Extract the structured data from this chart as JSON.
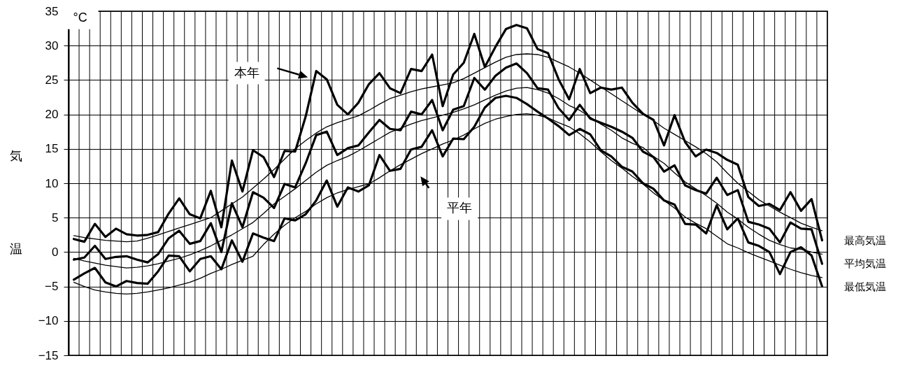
{
  "chart_data": {
    "type": "line",
    "ylabel": "気温",
    "categories": [
      null,
      null,
      null,
      null,
      null,
      null,
      null,
      null,
      null,
      null,
      null,
      null,
      null,
      null,
      null,
      null,
      null,
      null,
      null,
      null,
      null,
      null,
      null,
      null,
      null,
      null,
      null,
      null,
      null,
      null,
      null,
      null,
      null,
      null,
      null,
      null,
      null,
      null,
      null,
      null,
      null,
      null,
      null,
      null,
      null,
      null,
      null,
      null,
      null,
      null,
      null,
      null,
      null,
      null,
      null,
      null,
      null,
      null,
      null,
      null,
      null,
      null,
      null,
      null,
      null,
      null,
      null,
      null,
      null,
      null,
      null,
      null
    ],
    "ylim": [
      -15,
      35
    ],
    "yticks": [
      -15,
      -10,
      -5,
      0,
      5,
      10,
      15,
      20,
      25,
      30,
      35
    ],
    "grid": true,
    "annotations": [
      "°C",
      "本年",
      "平年"
    ],
    "series": [
      {
        "name": "最高気温",
        "color": "#000000",
        "values": [
          1.9,
          1.5,
          4.1,
          2.2,
          3.4,
          2.6,
          2.4,
          2.5,
          2.9,
          5.6,
          7.8,
          5.5,
          4.9,
          8.9,
          3.6,
          13.3,
          8.8,
          14.8,
          13.8,
          10.9,
          14.7,
          14.6,
          19.7,
          26.3,
          25.1,
          21.4,
          20.0,
          21.7,
          24.4,
          26.0,
          23.8,
          23.1,
          26.6,
          26.3,
          28.7,
          21.2,
          25.8,
          27.5,
          31.7,
          26.9,
          29.8,
          32.4,
          33.0,
          32.5,
          29.5,
          28.9,
          25.1,
          22.2,
          26.6,
          23.1,
          23.9,
          23.6,
          23.9,
          21.7,
          20.1,
          19.2,
          15.5,
          19.9,
          16.0,
          13.9,
          14.9,
          14.4,
          13.4,
          12.7,
          8.0,
          6.7,
          7.0,
          6.1,
          8.7,
          6.0,
          7.7,
          1.7
        ]
      },
      {
        "name": "平均気温",
        "color": "#000000",
        "values": [
          -1.1,
          -0.8,
          0.9,
          -1.0,
          -0.7,
          -0.6,
          -1.1,
          -1.5,
          -0.3,
          2.0,
          3.1,
          1.2,
          1.6,
          4.2,
          0.0,
          7.1,
          3.6,
          8.7,
          7.9,
          6.4,
          9.9,
          9.4,
          12.9,
          17.0,
          17.5,
          14.1,
          15.1,
          15.5,
          17.4,
          19.2,
          17.9,
          17.7,
          20.4,
          20.0,
          22.1,
          17.7,
          20.7,
          21.2,
          25.3,
          23.6,
          25.6,
          26.8,
          27.4,
          26.0,
          23.8,
          23.6,
          20.9,
          19.2,
          21.4,
          19.4,
          18.8,
          18.2,
          17.5,
          16.6,
          14.6,
          13.8,
          11.7,
          12.6,
          9.7,
          9.0,
          8.5,
          10.8,
          8.3,
          9.0,
          4.4,
          4.0,
          3.4,
          1.4,
          4.3,
          3.4,
          3.3,
          -1.7
        ]
      },
      {
        "name": "最低気温",
        "color": "#000000",
        "values": [
          -4.0,
          -3.1,
          -2.3,
          -4.4,
          -5.0,
          -4.2,
          -4.5,
          -4.6,
          -2.8,
          -0.5,
          -0.6,
          -2.8,
          -1.0,
          -0.6,
          -2.5,
          1.7,
          -1.4,
          2.7,
          2.1,
          1.6,
          4.9,
          4.6,
          5.5,
          7.5,
          10.4,
          6.6,
          9.4,
          8.8,
          9.7,
          14.1,
          11.8,
          12.1,
          14.9,
          15.3,
          17.7,
          13.9,
          16.5,
          16.4,
          18.2,
          21.0,
          22.4,
          22.7,
          22.4,
          21.5,
          20.4,
          19.4,
          18.3,
          17.0,
          17.9,
          17.1,
          14.8,
          13.9,
          12.4,
          11.7,
          10.0,
          9.2,
          7.5,
          6.9,
          4.1,
          4.0,
          2.7,
          6.8,
          3.3,
          4.9,
          1.4,
          0.9,
          0.0,
          -3.2,
          0.0,
          0.7,
          -0.5,
          -5.0
        ]
      },
      {
        "color": "#000000",
        "values": [
          2.4,
          2.1,
          1.9,
          1.7,
          1.6,
          1.5,
          1.6,
          2.0,
          2.5,
          3.0,
          3.5,
          4.0,
          4.5,
          5.0,
          6.0,
          7.0,
          8.0,
          9.3,
          10.6,
          12.0,
          13.5,
          15.0,
          16.2,
          17.3,
          18.2,
          18.8,
          19.3,
          19.8,
          20.6,
          21.5,
          22.3,
          22.8,
          23.3,
          23.7,
          24.0,
          24.3,
          24.6,
          25.2,
          26.0,
          26.8,
          27.6,
          28.3,
          28.7,
          28.8,
          28.7,
          28.3,
          27.6,
          26.9,
          26.0,
          25.0,
          24.0,
          23.0,
          22.0,
          21.0,
          20.0,
          19.1,
          18.0,
          17.1,
          16.2,
          15.3,
          14.3,
          13.1,
          11.5,
          10.0,
          8.8,
          7.6,
          6.7,
          5.8,
          5.0,
          4.2,
          3.6,
          3.1
        ]
      },
      {
        "color": "#000000",
        "values": [
          -0.9,
          -1.3,
          -1.6,
          -1.9,
          -2.1,
          -2.3,
          -2.2,
          -2.0,
          -1.7,
          -1.3,
          -0.9,
          -0.4,
          0.2,
          0.9,
          1.7,
          2.5,
          3.4,
          4.3,
          5.6,
          7.0,
          8.1,
          9.2,
          10.4,
          11.6,
          12.6,
          13.3,
          13.9,
          14.7,
          15.6,
          16.5,
          17.4,
          18.0,
          18.6,
          19.1,
          19.5,
          19.9,
          20.3,
          20.8,
          21.4,
          22.1,
          22.8,
          23.4,
          23.8,
          23.9,
          23.6,
          23.1,
          22.3,
          21.3,
          20.6,
          19.6,
          18.6,
          17.7,
          16.6,
          15.8,
          15.2,
          13.9,
          12.9,
          11.5,
          10.2,
          9.2,
          8.2,
          7.1,
          5.8,
          4.8,
          3.6,
          2.6,
          1.7,
          1.1,
          0.6,
          0.4,
          0.0,
          -0.3
        ]
      },
      {
        "color": "#000000",
        "values": [
          -4.4,
          -5.0,
          -5.5,
          -5.8,
          -6.0,
          -6.1,
          -6.0,
          -5.8,
          -5.5,
          -5.2,
          -4.8,
          -4.4,
          -3.8,
          -3.1,
          -2.5,
          -1.8,
          -1.2,
          -0.6,
          1.1,
          2.6,
          3.9,
          5.0,
          5.9,
          7.0,
          7.9,
          8.6,
          9.1,
          9.5,
          9.9,
          10.8,
          11.8,
          12.7,
          13.5,
          14.3,
          15.0,
          15.7,
          16.3,
          17.0,
          17.9,
          18.7,
          19.3,
          19.7,
          20.0,
          20.1,
          19.9,
          19.5,
          18.8,
          18.2,
          17.2,
          16.0,
          14.6,
          13.3,
          12.2,
          11.0,
          9.9,
          8.6,
          7.5,
          6.4,
          5.1,
          4.2,
          3.4,
          2.3,
          1.2,
          0.6,
          -0.1,
          -0.7,
          -1.3,
          -1.9,
          -2.5,
          -3.0,
          -3.4,
          -3.7
        ]
      }
    ]
  }
}
